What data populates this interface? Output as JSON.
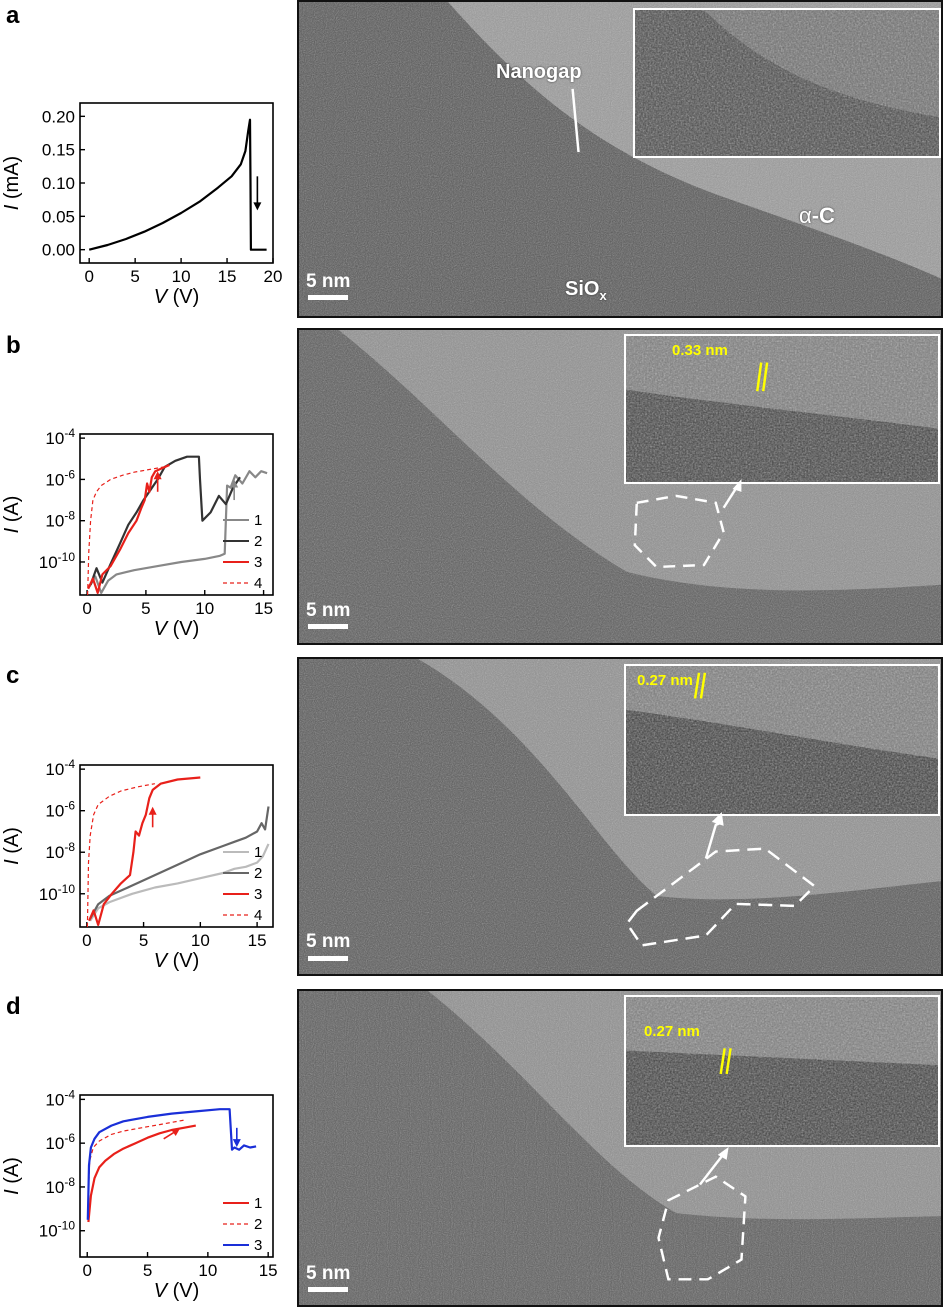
{
  "panels": {
    "a": {
      "letter": "a",
      "labels": {
        "nanogap": "Nanogap",
        "carbon_alpha": "α",
        "carbon_dash": "-",
        "carbon_c": "C",
        "siox": "SiO",
        "siox_sub": "x",
        "scale": "5 nm"
      }
    },
    "b": {
      "letter": "b",
      "labels": {
        "spacing": "0.33 nm",
        "scale": "5 nm"
      }
    },
    "c": {
      "letter": "c",
      "labels": {
        "spacing": "0.27 nm",
        "scale": "5 nm"
      }
    },
    "d": {
      "letter": "d",
      "labels": {
        "spacing": "0.27 nm",
        "scale": "5 nm"
      }
    }
  },
  "colors": {
    "black": "#000000",
    "dark_gray": "#555555",
    "light_gray": "#999999",
    "red": "#e8201a",
    "blue": "#1a2fd8",
    "yellow": "#ffff00"
  },
  "chart_data": [
    {
      "panel": "a",
      "type": "line",
      "xlabel_var": "V",
      "xlabel_unit": " (V)",
      "ylabel_var": "I",
      "ylabel_unit": " (mA)",
      "xlim": [
        -1,
        20
      ],
      "ylim": [
        -0.02,
        0.22
      ],
      "yscale": "linear",
      "xticks": [
        0,
        5,
        10,
        15,
        20
      ],
      "yticks": [
        0.0,
        0.05,
        0.1,
        0.15,
        0.2
      ],
      "ytick_labels": [
        "0.00",
        "0.05",
        "0.10",
        "0.15",
        "0.20"
      ],
      "series": [
        {
          "color": "#000000",
          "dashed": false,
          "x": [
            0,
            2,
            4,
            6,
            8,
            10,
            12,
            14,
            15.5,
            16.5,
            17.0,
            17.3,
            17.5,
            17.55,
            17.6,
            18.3,
            19.3
          ],
          "y": [
            0,
            0.007,
            0.016,
            0.027,
            0.04,
            0.055,
            0.072,
            0.093,
            0.11,
            0.128,
            0.148,
            0.178,
            0.195,
            0.1,
            0.0,
            0.0,
            0.0
          ]
        }
      ],
      "arrows": [
        {
          "color": "#000000",
          "x": 18.3,
          "y_from": 0.11,
          "y_to": 0.065
        }
      ]
    },
    {
      "panel": "b",
      "type": "line",
      "xlabel_var": "V",
      "xlabel_unit": " (V)",
      "ylabel_var": "I",
      "ylabel_unit": " (A)",
      "xlim": [
        -0.6,
        15.8
      ],
      "ylim": [
        -11.6,
        -3.8
      ],
      "yscale": "log",
      "xticks": [
        0,
        5,
        10,
        15
      ],
      "yticks": [
        -4,
        -6,
        -8,
        -10
      ],
      "ytick_labels": [
        "10^-4",
        "10^-6",
        "10^-8",
        "10^-10"
      ],
      "legend": [
        "1",
        "2",
        "3",
        "4"
      ],
      "series": [
        {
          "color": "#888888",
          "dashed": false,
          "x": [
            0.2,
            0.7,
            1.2,
            1.8,
            2.5,
            4,
            6,
            8,
            10,
            11.3,
            11.7,
            11.9,
            12.2,
            12.6,
            13.2,
            13.8,
            14.3,
            14.8,
            15.3
          ],
          "y": [
            -11.2,
            -10.7,
            -11.5,
            -10.9,
            -10.6,
            -10.4,
            -10.2,
            -10.0,
            -9.85,
            -9.7,
            -9.6,
            -6.3,
            -6.4,
            -5.8,
            -6.2,
            -5.6,
            -5.9,
            -5.6,
            -5.7
          ]
        },
        {
          "color": "#333333",
          "dashed": false,
          "x": [
            0.3,
            0.8,
            1.3,
            2,
            2.8,
            3.5,
            4.2,
            4.8,
            5.4,
            6,
            6.6,
            7.5,
            8.5,
            9.5,
            9.6,
            9.8,
            10.5,
            11.2,
            11.8,
            12.4,
            13
          ],
          "y": [
            -11.1,
            -10.3,
            -11.0,
            -10.1,
            -9.1,
            -8.2,
            -7.6,
            -7.0,
            -6.5,
            -6.0,
            -5.4,
            -5.1,
            -4.9,
            -4.9,
            -6.0,
            -8.0,
            -7.6,
            -6.8,
            -7.2,
            -6.4,
            -5.9
          ]
        },
        {
          "color": "#e8201a",
          "dashed": false,
          "x": [
            0.1,
            0.5,
            0.9,
            1.3,
            2,
            2.8,
            3.5,
            4.2,
            4.6,
            4.9,
            5.1,
            5.3,
            5.5,
            5.8,
            6.2,
            7
          ],
          "y": [
            -11.3,
            -10.8,
            -11.5,
            -10.6,
            -10.2,
            -9.4,
            -8.6,
            -8.0,
            -7.4,
            -7.0,
            -6.2,
            -6.6,
            -5.9,
            -5.6,
            -5.5,
            -5.3
          ]
        },
        {
          "color": "#e8201a",
          "dashed": true,
          "x": [
            0.05,
            0.15,
            0.3,
            0.5,
            0.8,
            1.2,
            2,
            3,
            4,
            5,
            6.5
          ],
          "y": [
            -11.6,
            -9.5,
            -8.0,
            -7.0,
            -6.6,
            -6.3,
            -6.0,
            -5.8,
            -5.65,
            -5.55,
            -5.4
          ]
        }
      ],
      "arrows": [
        {
          "color": "#e8201a",
          "x": 6.0,
          "y_from": -6.6,
          "y_to": -5.8
        },
        {
          "color": "#888888",
          "x": 12.5,
          "y_from": -7.0,
          "y_to": -6.2
        }
      ]
    },
    {
      "panel": "c",
      "type": "line",
      "xlabel_var": "V",
      "xlabel_unit": " (V)",
      "ylabel_var": "I",
      "ylabel_unit": " (A)",
      "xlim": [
        -0.6,
        16.4
      ],
      "ylim": [
        -11.6,
        -3.8
      ],
      "yscale": "log",
      "xticks": [
        0,
        5,
        10,
        15
      ],
      "yticks": [
        -4,
        -6,
        -8,
        -10
      ],
      "ytick_labels": [
        "10^-4",
        "10^-6",
        "10^-8",
        "10^-10"
      ],
      "legend": [
        "1",
        "2",
        "3",
        "4"
      ],
      "series": [
        {
          "color": "#bbbbbb",
          "dashed": false,
          "x": [
            0.3,
            1,
            2,
            4,
            6,
            8,
            10,
            12,
            13,
            14,
            15,
            15.5,
            16
          ],
          "y": [
            -11.3,
            -10.7,
            -10.4,
            -10.0,
            -9.7,
            -9.5,
            -9.25,
            -9.0,
            -8.8,
            -8.7,
            -8.5,
            -8.2,
            -7.6
          ]
        },
        {
          "color": "#666666",
          "dashed": false,
          "x": [
            0.3,
            1,
            2,
            4,
            6,
            8,
            10,
            12,
            13,
            14,
            15,
            15.4,
            15.7,
            16
          ],
          "y": [
            -11.2,
            -10.5,
            -10.1,
            -9.6,
            -9.1,
            -8.6,
            -8.1,
            -7.7,
            -7.5,
            -7.3,
            -7.0,
            -6.6,
            -6.9,
            -5.8
          ]
        },
        {
          "color": "#e8201a",
          "dashed": false,
          "x": [
            0.2,
            0.6,
            1.0,
            1.5,
            2.2,
            3,
            3.8,
            4.1,
            4.3,
            4.6,
            4.9,
            5.2,
            5.5,
            5.8,
            6.5,
            8,
            10
          ],
          "y": [
            -11.3,
            -10.8,
            -11.5,
            -10.5,
            -10.0,
            -9.5,
            -9.1,
            -8.0,
            -7.0,
            -7.2,
            -6.6,
            -6.2,
            -5.4,
            -5.0,
            -4.7,
            -4.5,
            -4.4
          ]
        },
        {
          "color": "#e8201a",
          "dashed": true,
          "x": [
            0.05,
            0.15,
            0.3,
            0.6,
            1,
            2,
            3,
            4.5,
            6
          ],
          "y": [
            -11.6,
            -8.5,
            -7.2,
            -6.2,
            -5.7,
            -5.3,
            -5.05,
            -4.85,
            -4.7
          ]
        }
      ],
      "arrows": [
        {
          "color": "#e8201a",
          "x": 5.8,
          "y_from": -6.8,
          "y_to": -6.0
        }
      ]
    },
    {
      "panel": "d",
      "type": "line",
      "xlabel_var": "V",
      "xlabel_unit": " (V)",
      "ylabel_var": "I",
      "ylabel_unit": " (A)",
      "xlim": [
        -0.6,
        15.4
      ],
      "ylim": [
        -11.2,
        -3.8
      ],
      "yscale": "log",
      "xticks": [
        0,
        5,
        10,
        15
      ],
      "yticks": [
        -4,
        -6,
        -8,
        -10
      ],
      "ytick_labels": [
        "10^-4",
        "10^-6",
        "10^-8",
        "10^-10"
      ],
      "legend": [
        "1",
        "2",
        "3"
      ],
      "series": [
        {
          "color": "#e8201a",
          "dashed": false,
          "x": [
            0.1,
            0.3,
            0.6,
            1,
            1.5,
            2.2,
            3,
            4,
            5,
            6,
            7,
            8,
            9
          ],
          "y": [
            -9.6,
            -8.4,
            -7.6,
            -7.1,
            -6.8,
            -6.5,
            -6.25,
            -6.0,
            -5.75,
            -5.55,
            -5.4,
            -5.3,
            -5.2
          ]
        },
        {
          "color": "#e8201a",
          "dashed": true,
          "x": [
            0.05,
            0.2,
            0.5,
            1,
            2,
            3,
            4,
            5,
            6,
            7,
            8
          ],
          "y": [
            -9.0,
            -6.8,
            -6.2,
            -5.9,
            -5.6,
            -5.45,
            -5.35,
            -5.25,
            -5.15,
            -5.05,
            -4.95
          ]
        },
        {
          "color": "#1a2fd8",
          "dashed": false,
          "x": [
            0.05,
            0.15,
            0.3,
            0.6,
            1,
            2,
            3,
            5,
            7,
            9,
            11,
            11.8,
            12.0,
            12.2,
            12.6,
            13.0,
            13.5,
            14.0
          ],
          "y": [
            -9.5,
            -7.0,
            -6.2,
            -5.8,
            -5.5,
            -5.2,
            -5.0,
            -4.8,
            -4.65,
            -4.55,
            -4.45,
            -4.45,
            -6.3,
            -6.2,
            -6.3,
            -6.1,
            -6.2,
            -6.15
          ]
        }
      ],
      "arrows": [
        {
          "color": "#1a2fd8",
          "x": 12.4,
          "y_from": -5.3,
          "y_to": -6.0
        },
        {
          "color": "#e8201a",
          "x": 7.5,
          "y_from": -5.8,
          "y_to": -5.4,
          "diag": true
        }
      ]
    }
  ]
}
